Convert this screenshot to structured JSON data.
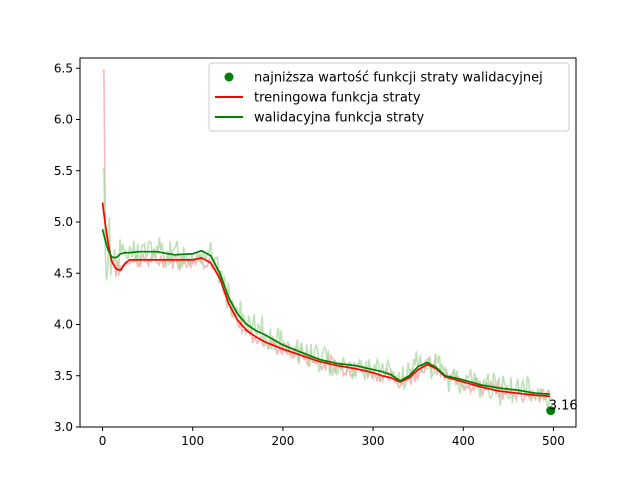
{
  "chart_data": {
    "type": "line",
    "xlim": [
      -25,
      525
    ],
    "ylim": [
      3.0,
      6.6
    ],
    "xticks": [
      0,
      100,
      200,
      300,
      400,
      500
    ],
    "yticks": [
      3.0,
      3.5,
      4.0,
      4.5,
      5.0,
      5.5,
      6.0,
      6.5
    ],
    "grid": false,
    "legend_position": "top-right",
    "colors": {
      "train": "#ff0000",
      "val": "#008000",
      "train_raw": "#f4a3a3",
      "val_raw": "#a8d8a0"
    },
    "series": [
      {
        "name": "treningowa funkcja straty",
        "color": "#ff0000",
        "x": [
          0,
          5,
          10,
          15,
          20,
          25,
          30,
          40,
          60,
          80,
          100,
          110,
          120,
          130,
          140,
          150,
          160,
          170,
          180,
          200,
          220,
          240,
          260,
          280,
          300,
          310,
          320,
          330,
          340,
          350,
          360,
          370,
          380,
          400,
          420,
          440,
          460,
          480,
          497
        ],
        "y": [
          5.19,
          4.85,
          4.62,
          4.54,
          4.53,
          4.6,
          4.63,
          4.63,
          4.63,
          4.63,
          4.63,
          4.65,
          4.6,
          4.45,
          4.2,
          4.04,
          3.94,
          3.88,
          3.83,
          3.76,
          3.7,
          3.64,
          3.6,
          3.57,
          3.53,
          3.5,
          3.48,
          3.44,
          3.48,
          3.56,
          3.61,
          3.57,
          3.49,
          3.44,
          3.39,
          3.35,
          3.33,
          3.31,
          3.3
        ]
      },
      {
        "name": "walidacyjna funkcja straty",
        "color": "#008000",
        "x": [
          0,
          5,
          10,
          15,
          20,
          25,
          30,
          40,
          60,
          80,
          100,
          110,
          120,
          130,
          140,
          150,
          160,
          170,
          180,
          200,
          220,
          240,
          260,
          280,
          300,
          310,
          320,
          330,
          340,
          350,
          360,
          370,
          380,
          400,
          420,
          440,
          460,
          480,
          497
        ],
        "y": [
          4.93,
          4.75,
          4.66,
          4.65,
          4.69,
          4.7,
          4.7,
          4.71,
          4.71,
          4.68,
          4.69,
          4.72,
          4.67,
          4.5,
          4.26,
          4.1,
          4.0,
          3.94,
          3.9,
          3.8,
          3.73,
          3.66,
          3.62,
          3.6,
          3.56,
          3.54,
          3.51,
          3.45,
          3.5,
          3.59,
          3.63,
          3.58,
          3.5,
          3.46,
          3.41,
          3.38,
          3.36,
          3.33,
          3.32
        ]
      }
    ],
    "best_point": {
      "name": "najniższa wartość funkcji straty walidacyjnej",
      "x": 497,
      "y": 3.16,
      "label": "3.16",
      "color": "#008000"
    },
    "legend": [
      {
        "label": "najniższa wartość funkcji straty walidacyjnej",
        "kind": "marker",
        "color": "#008000"
      },
      {
        "label": "treningowa funkcja straty",
        "kind": "line",
        "color": "#ff0000"
      },
      {
        "label": "walidacyjna funkcja straty",
        "kind": "line",
        "color": "#008000"
      }
    ]
  }
}
